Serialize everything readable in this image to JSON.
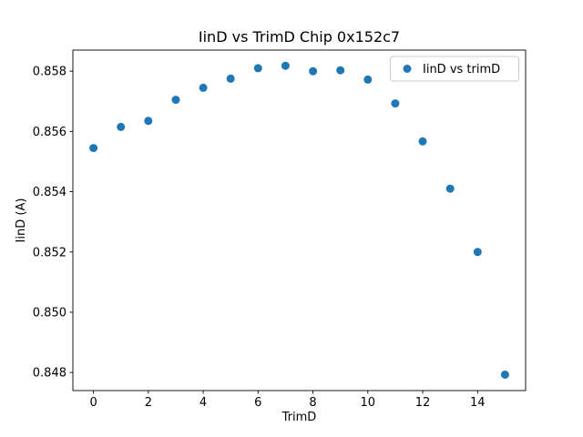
{
  "figure": {
    "background": "#ffffff"
  },
  "chart_data": {
    "type": "scatter",
    "title": "IinD vs TrimD Chip 0x152c7",
    "xlabel": "TrimD",
    "ylabel": "IinD (A)",
    "legend": {
      "label": "IinD vs trimD",
      "position": "upper right"
    },
    "marker_color": "#1f77b4",
    "x": [
      0,
      1,
      2,
      3,
      4,
      5,
      6,
      7,
      8,
      9,
      10,
      11,
      12,
      13,
      14,
      15
    ],
    "y": [
      0.85545,
      0.85615,
      0.85635,
      0.85705,
      0.85745,
      0.85775,
      0.8581,
      0.85818,
      0.858,
      0.85803,
      0.85772,
      0.85693,
      0.85567,
      0.8541,
      0.852,
      0.84793
    ],
    "xlim": [
      -0.75,
      15.75
    ],
    "ylim": [
      0.8474,
      0.8587
    ],
    "xticks": [
      0,
      2,
      4,
      6,
      8,
      10,
      12,
      14
    ],
    "yticks": [
      0.848,
      0.85,
      0.852,
      0.854,
      0.856,
      0.858
    ],
    "grid": false
  }
}
